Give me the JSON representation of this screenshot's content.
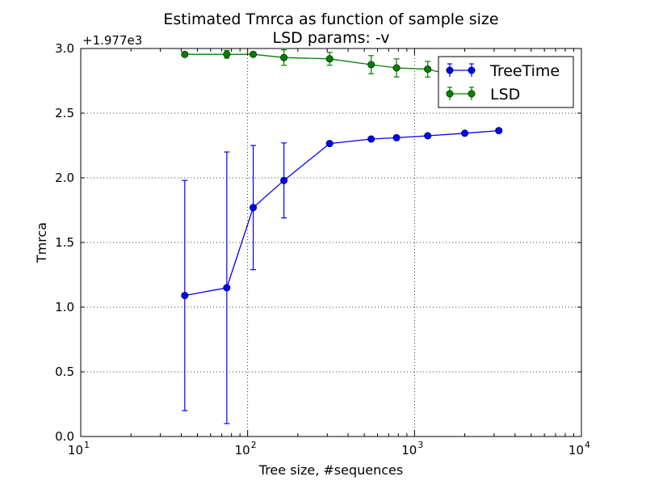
{
  "chart_data": {
    "type": "line",
    "title": "Estimated Tmrca as function of sample size",
    "subtitle": "LSD params: -v",
    "xlabel": "Tree size, #sequences",
    "ylabel": "Tmrca",
    "xscale": "log",
    "xlim": [
      10,
      10000
    ],
    "ylim": [
      0.0,
      3.0
    ],
    "offset_text": "+1.977e3",
    "grid": true,
    "legend_position": "top-right",
    "x_ticks": [
      {
        "base": "10",
        "exp": "1",
        "value": 10
      },
      {
        "base": "10",
        "exp": "2",
        "value": 100
      },
      {
        "base": "10",
        "exp": "3",
        "value": 1000
      },
      {
        "base": "10",
        "exp": "4",
        "value": 10000
      }
    ],
    "y_ticks": [
      {
        "label": "0.0",
        "value": 0.0
      },
      {
        "label": "0.5",
        "value": 0.5
      },
      {
        "label": "1.0",
        "value": 1.0
      },
      {
        "label": "1.5",
        "value": 1.5
      },
      {
        "label": "2.0",
        "value": 2.0
      },
      {
        "label": "2.5",
        "value": 2.5
      },
      {
        "label": "3.0",
        "value": 3.0
      }
    ],
    "series": [
      {
        "name": "TreeTime",
        "color": "#0000ff",
        "x": [
          42,
          75,
          108,
          165,
          310,
          550,
          780,
          1200,
          2000,
          3200
        ],
        "y": [
          1.09,
          1.15,
          1.77,
          1.98,
          2.265,
          2.3,
          2.31,
          2.325,
          2.345,
          2.365
        ],
        "y_err": [
          0.89,
          1.05,
          0.48,
          0.29,
          0.0,
          0.0,
          0.0,
          0.0,
          0.0,
          0.0
        ]
      },
      {
        "name": "LSD",
        "color": "#008000",
        "x": [
          42,
          75,
          108,
          165,
          310,
          550,
          780,
          1200,
          2000,
          3200
        ],
        "y": [
          2.955,
          2.955,
          2.955,
          2.93,
          2.92,
          2.875,
          2.85,
          2.84,
          2.77,
          2.72
        ],
        "y_err": [
          0.0,
          0.03,
          0.0,
          0.06,
          0.05,
          0.07,
          0.07,
          0.06,
          0.0,
          0.0
        ]
      }
    ]
  }
}
